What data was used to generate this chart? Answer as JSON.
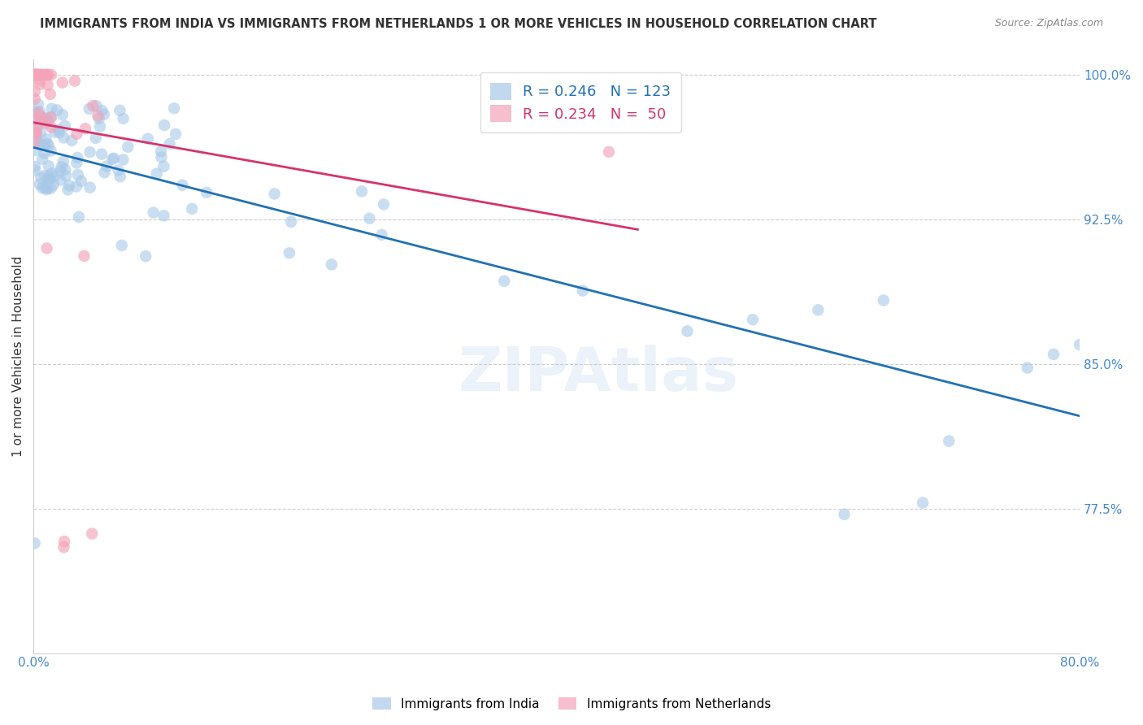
{
  "title": "IMMIGRANTS FROM INDIA VS IMMIGRANTS FROM NETHERLANDS 1 OR MORE VEHICLES IN HOUSEHOLD CORRELATION CHART",
  "source": "Source: ZipAtlas.com",
  "ylabel": "1 or more Vehicles in Household",
  "xlim": [
    0.0,
    0.8
  ],
  "ylim": [
    0.7,
    1.008
  ],
  "ytick_values": [
    0.775,
    0.85,
    0.925,
    1.0
  ],
  "yticklabels": [
    "77.5%",
    "85.0%",
    "92.5%",
    "100.0%"
  ],
  "xtick_positions": [
    0.0,
    0.1,
    0.2,
    0.3,
    0.4,
    0.5,
    0.6,
    0.7,
    0.8
  ],
  "xticklabels": [
    "0.0%",
    "",
    "",
    "",
    "",
    "",
    "",
    "",
    "80.0%"
  ],
  "india_R": 0.246,
  "india_N": 123,
  "neth_R": 0.234,
  "neth_N": 50,
  "india_color": "#a8c8e8",
  "neth_color": "#f4a3b8",
  "india_line_color": "#2171b5",
  "neth_line_color": "#d6336c",
  "background_color": "#ffffff",
  "grid_color": "#cccccc",
  "legend_edge_color": "#dddddd",
  "title_color": "#333333",
  "source_color": "#888888",
  "tick_color": "#4488cc",
  "ylabel_color": "#333333"
}
